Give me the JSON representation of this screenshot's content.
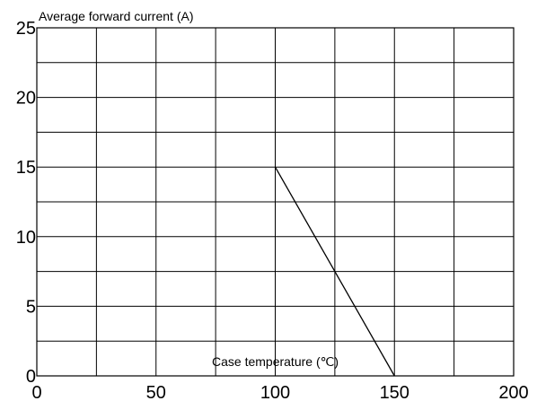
{
  "chart_data": {
    "type": "line",
    "title": "",
    "ylabel": "Average forward current (A)",
    "xlabel": "Case temperature (℃)",
    "xlim": [
      0,
      200
    ],
    "ylim": [
      0,
      25
    ],
    "xticks": [
      0,
      50,
      100,
      150,
      200
    ],
    "yticks": [
      0,
      5,
      10,
      15,
      20,
      25
    ],
    "x_gridlines": [
      0,
      25,
      50,
      75,
      100,
      125,
      150,
      175,
      200
    ],
    "y_gridlines": [
      0,
      2.5,
      5,
      7.5,
      10,
      12.5,
      15,
      17.5,
      20,
      22.5,
      25
    ],
    "grid": true,
    "legend": "none",
    "series": [
      {
        "x": [
          100,
          150
        ],
        "y": [
          15,
          0
        ]
      }
    ],
    "line_color": "#000000"
  }
}
